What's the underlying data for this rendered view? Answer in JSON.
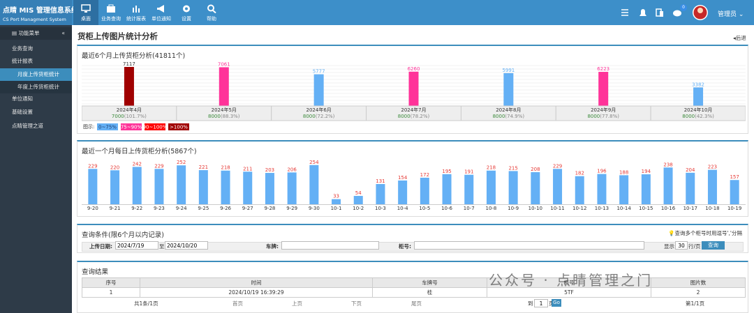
{
  "header": {
    "logo_title": "点睛 MIS 管理信息系统",
    "logo_subtitle": "CS Port Managment System",
    "nav": [
      "桌面",
      "业务查询",
      "统计报表",
      "单位通知",
      "设置",
      "帮助"
    ],
    "badge": "0",
    "user": "管理员"
  },
  "sidebar": {
    "title": "功能菜单",
    "items": [
      "业务查询",
      "统计报表",
      "月度上传货柜统计",
      "年度上传货柜统计",
      "单位通知",
      "基础设置",
      "点睛管理之道"
    ]
  },
  "page": {
    "title": "货柜上传图片统计分析",
    "back": "后退"
  },
  "chart_data": [
    {
      "type": "bar",
      "title": "最近6个月上传货柜分析(41811个)",
      "categories": [
        "2024年4月",
        "2024年5月",
        "2024年6月",
        "2024年7月",
        "2024年8月",
        "2024年9月",
        "2024年10月"
      ],
      "values": [
        7117,
        7061,
        5777,
        6260,
        5991,
        6223,
        3382
      ],
      "colors": [
        "#a00000",
        "#ff3399",
        "#64b0f5",
        "#ff3399",
        "#64b0f5",
        "#ff3399",
        "#64b0f5"
      ],
      "targets": [
        7000,
        8000,
        8000,
        8000,
        8000,
        8000,
        8000
      ],
      "ratio_labels": [
        "(101.7%)",
        "(88.3%)",
        "(72.2%)",
        "(78.2%)",
        "(74.9%)",
        "(77.8%)",
        "(42.3%)"
      ],
      "ylim": [
        0,
        7500
      ],
      "legend_title": "图示:",
      "legend": [
        {
          "label": "0~75%",
          "color": "#64b0f5"
        },
        {
          "label": "75~90%",
          "color": "#ff3399"
        },
        {
          "label": "90~100%",
          "color": "#ff0000"
        },
        {
          "label": ">100%",
          "color": "#a00000"
        }
      ]
    },
    {
      "type": "bar",
      "title": "最近一个月每日上传货柜分析(5867个)",
      "categories": [
        "9-20",
        "9-21",
        "9-22",
        "9-23",
        "9-24",
        "9-25",
        "9-26",
        "9-27",
        "9-28",
        "9-29",
        "9-30",
        "10-1",
        "10-2",
        "10-3",
        "10-4",
        "10-5",
        "10-6",
        "10-7",
        "10-8",
        "10-9",
        "10-10",
        "10-11",
        "10-12",
        "10-13",
        "10-14",
        "10-15",
        "10-16",
        "10-17",
        "10-18",
        "10-19"
      ],
      "values": [
        229,
        220,
        242,
        229,
        252,
        221,
        218,
        211,
        203,
        206,
        254,
        33,
        54,
        131,
        154,
        172,
        195,
        191,
        218,
        215,
        208,
        229,
        182,
        196,
        188,
        194,
        238,
        204,
        223,
        157
      ],
      "color": "#64b0f5",
      "label_color": "#e53935",
      "ylim": [
        0,
        280
      ]
    }
  ],
  "query": {
    "title": "查询条件(限6个月以内记录)",
    "hint": "查询多个柜号时用逗号','分隔",
    "date_label": "上传日期:",
    "date_from": "2024/7/19",
    "to": "至",
    "date_to": "2024/10/20",
    "plate_label": "车牌:",
    "container_label": "柜号:",
    "show": "显示",
    "rows": "30",
    "per_page": "行/页",
    "submit": "查询"
  },
  "results": {
    "title": "查询结果",
    "columns": [
      "序号",
      "时间",
      "车牌号",
      "柜号",
      "图片数"
    ],
    "rows": [
      [
        "1",
        "2024/10/19 16:39:29",
        "桂",
        "5TF",
        "2"
      ]
    ],
    "pager": {
      "summary": "共1条/1页",
      "first": "首页",
      "prev": "上页",
      "next": "下页",
      "last": "尾页",
      "goto": "到",
      "page": "1",
      "page_unit": "页",
      "go": "Go",
      "status": "第1/1页"
    }
  },
  "watermark": "公众号 · 点睛管理之门"
}
